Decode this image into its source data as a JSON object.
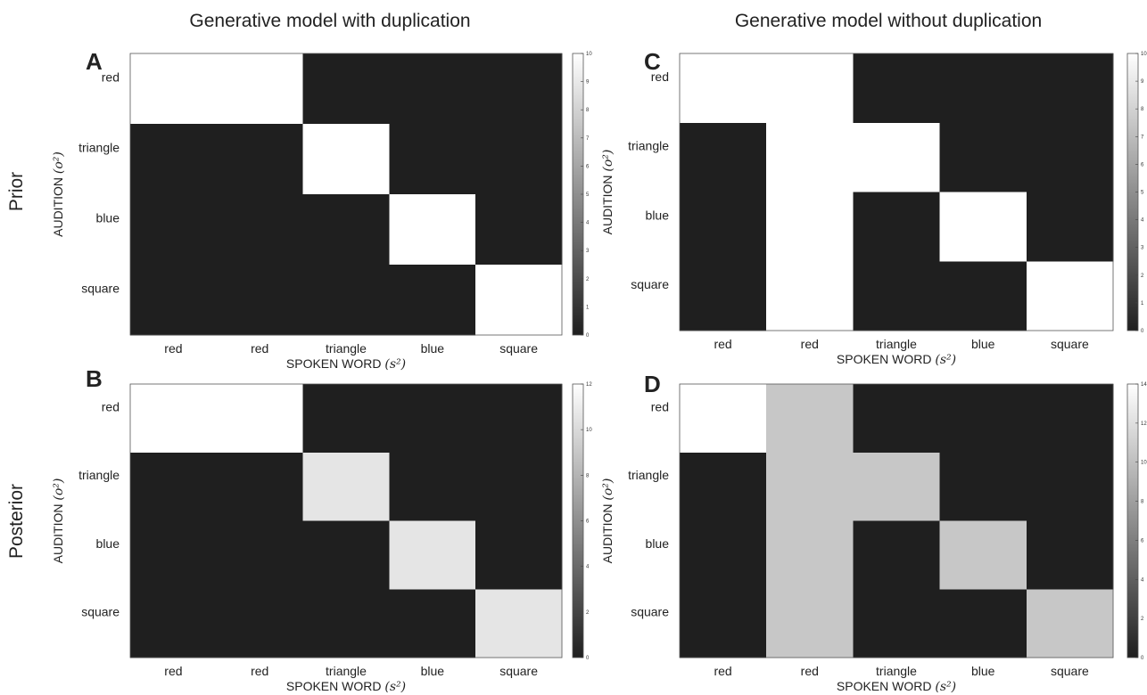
{
  "column_titles": [
    "Generative model with duplication",
    "Generative model without duplication"
  ],
  "row_titles": [
    "Prior",
    "Posterior"
  ],
  "chart_data": [
    {
      "type": "heatmap",
      "panel": "A",
      "column": 0,
      "row": 0,
      "xlabel": "SPOKEN WORD",
      "xlabel_math": "(s²)",
      "ylabel": "AUDITION",
      "ylabel_math": "(o²)",
      "x_categories": [
        "red",
        "red",
        "triangle",
        "blue",
        "square"
      ],
      "y_categories": [
        "red",
        "triangle",
        "blue",
        "square"
      ],
      "values": [
        [
          10,
          10,
          0,
          0,
          0
        ],
        [
          0,
          0,
          10,
          0,
          0
        ],
        [
          0,
          0,
          0,
          10,
          0
        ],
        [
          0,
          0,
          0,
          0,
          10
        ]
      ],
      "colorbar": {
        "min": 0,
        "max": 10,
        "ticks": [
          "0",
          "1",
          "2",
          "3",
          "4",
          "5",
          "6",
          "7",
          "8",
          "9",
          "10"
        ]
      },
      "grid": false
    },
    {
      "type": "heatmap",
      "panel": "B",
      "column": 0,
      "row": 1,
      "xlabel": "SPOKEN WORD",
      "xlabel_math": "(s²)",
      "ylabel": "AUDITION",
      "ylabel_math": "(o²)",
      "x_categories": [
        "red",
        "red",
        "triangle",
        "blue",
        "square"
      ],
      "y_categories": [
        "red",
        "triangle",
        "blue",
        "square"
      ],
      "values": [
        [
          12,
          12,
          0,
          0,
          0
        ],
        [
          0,
          0,
          10.6,
          0,
          0
        ],
        [
          0,
          0,
          0,
          10.6,
          0
        ],
        [
          0,
          0,
          0,
          0,
          10.6
        ]
      ],
      "colorbar": {
        "min": 0,
        "max": 12,
        "ticks": [
          "0",
          "2",
          "4",
          "6",
          "8",
          "10",
          "12"
        ]
      },
      "grid": false
    },
    {
      "type": "heatmap",
      "panel": "C",
      "column": 1,
      "row": 0,
      "xlabel": "SPOKEN WORD",
      "xlabel_math": "(s²)",
      "ylabel": "AUDITION",
      "ylabel_math": "(o²)",
      "x_categories": [
        "red",
        "red",
        "triangle",
        "blue",
        "square"
      ],
      "y_categories": [
        "red",
        "triangle",
        "blue",
        "square"
      ],
      "values": [
        [
          10,
          10,
          0,
          0,
          0
        ],
        [
          0,
          10,
          10,
          0,
          0
        ],
        [
          0,
          10,
          0,
          10,
          0
        ],
        [
          0,
          10,
          0,
          0,
          10
        ]
      ],
      "colorbar": {
        "min": 0,
        "max": 10,
        "ticks": [
          "0",
          "1",
          "2",
          "3",
          "4",
          "5",
          "6",
          "7",
          "8",
          "9",
          "10"
        ]
      },
      "grid": false
    },
    {
      "type": "heatmap",
      "panel": "D",
      "column": 1,
      "row": 1,
      "xlabel": "SPOKEN WORD",
      "xlabel_math": "(s²)",
      "ylabel": "AUDITION",
      "ylabel_math": "(o²)",
      "x_categories": [
        "red",
        "red",
        "triangle",
        "blue",
        "square"
      ],
      "y_categories": [
        "red",
        "triangle",
        "blue",
        "square"
      ],
      "values": [
        [
          14,
          10.5,
          0,
          0,
          0
        ],
        [
          0,
          10.5,
          10.5,
          0,
          0
        ],
        [
          0,
          10.5,
          0,
          10.5,
          0
        ],
        [
          0,
          10.5,
          0,
          0,
          10.5
        ]
      ],
      "colorbar": {
        "min": 0,
        "max": 14,
        "ticks": [
          "0",
          "2",
          "4",
          "6",
          "8",
          "10",
          "12",
          "14"
        ]
      },
      "grid": false
    }
  ]
}
